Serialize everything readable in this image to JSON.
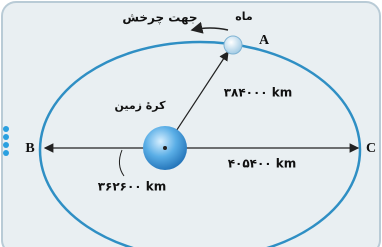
{
  "labels": {
    "rotation": "جهت چرخش",
    "moon": "ماه",
    "earth": "کرهٔ زمین",
    "point_a": "A",
    "point_b": "B",
    "point_c": "C"
  },
  "distances": {
    "average": "۳۸۴۰۰۰ km",
    "maximum": "۴۰۵۴۰۰ km",
    "minimum": "۳۶۲۶۰۰ km"
  }
}
